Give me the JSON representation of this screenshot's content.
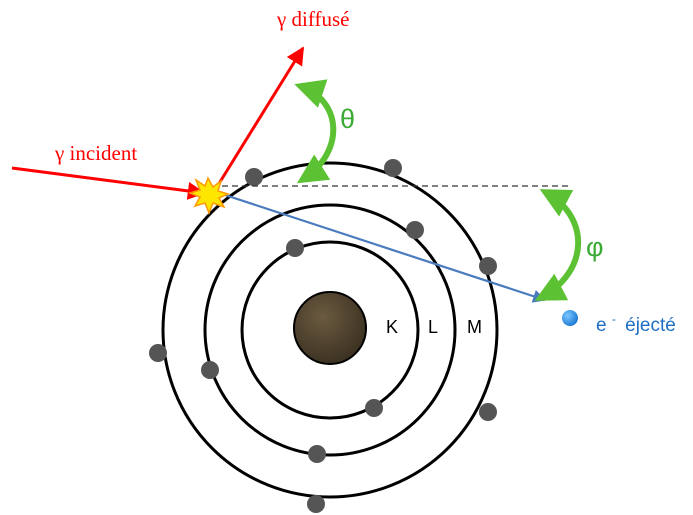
{
  "labels": {
    "gamma_scattered": "γ diffusé",
    "gamma_incident": "γ incident",
    "theta": "θ",
    "phi": "φ",
    "shell_k": "K",
    "shell_l": "L",
    "shell_m": "M",
    "electron_symbol": "e",
    "electron_charge": "-",
    "electron_ejected_word": "éjecté"
  },
  "colors": {
    "incident_photon": "#ff0000",
    "scattered_photon": "#ff0000",
    "ejected_electron_path": "#4a7bbf",
    "angle_arrows": "#5cc233",
    "angle_labels": "#3aaa35",
    "electron_label": "#1f6fc5",
    "nucleus": "#4a3e2c",
    "orbital_electron": "#555555",
    "ejected_electron": "#2b8fe0",
    "collision_flash": "#ffe600"
  },
  "icons": {
    "collision": "collision-flash-icon",
    "nucleus": "nucleus-icon",
    "electron": "electron-icon"
  }
}
